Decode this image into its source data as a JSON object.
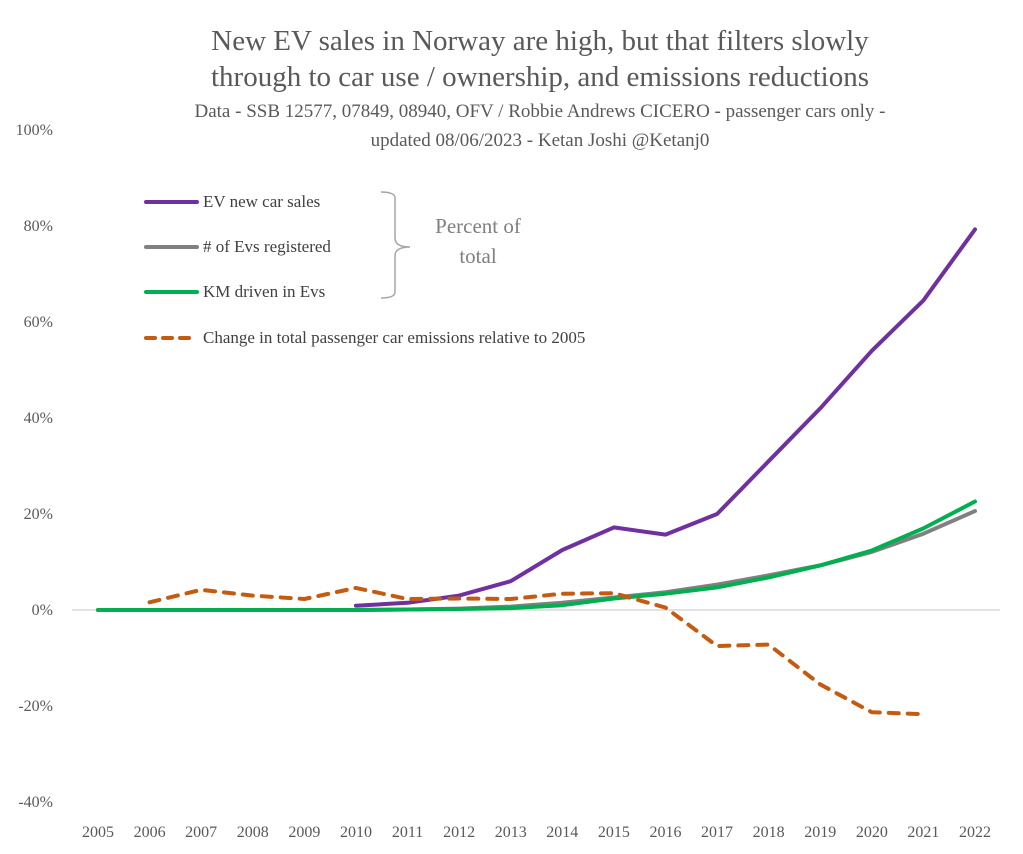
{
  "chart_data": {
    "type": "line",
    "title": "New EV sales in Norway are high, but that filters slowly through to car use / ownership, and emissions reductions",
    "title_lines": [
      "New EV sales in Norway are high, but that filters slowly",
      "through to car use / ownership, and emissions reductions"
    ],
    "subtitle_lines": [
      "Data - SSB 12577, 07849, 08940, OFV / Robbie Andrews CICERO - passenger cars only -",
      "updated 08/06/2023 - Ketan Joshi @Ketanj0"
    ],
    "xlabel": "",
    "ylabel": "",
    "ylim": [
      -40,
      100
    ],
    "y_ticks": [
      100,
      80,
      60,
      40,
      20,
      0,
      -20,
      -40
    ],
    "y_tick_labels": [
      "100%",
      "80%",
      "60%",
      "40%",
      "20%",
      "0%",
      "-20%",
      "-40%"
    ],
    "x": [
      2005,
      2006,
      2007,
      2008,
      2009,
      2010,
      2011,
      2012,
      2013,
      2014,
      2015,
      2016,
      2017,
      2018,
      2019,
      2020,
      2021,
      2022
    ],
    "x_tick_labels": [
      "2005",
      "2006",
      "2007",
      "2008",
      "2009",
      "2010",
      "2011",
      "2012",
      "2013",
      "2014",
      "2015",
      "2016",
      "2017",
      "2018",
      "2019",
      "2020",
      "2021",
      "2022"
    ],
    "grid": false,
    "zero_line": true,
    "legend_position": "top-left",
    "series": [
      {
        "name": "EV new car sales",
        "color": "#7030a0",
        "dashed": false,
        "values": [
          null,
          null,
          null,
          null,
          null,
          0.9,
          1.5,
          3.0,
          6.0,
          12.5,
          17.2,
          15.7,
          20.0,
          31.0,
          42.0,
          54.0,
          64.5,
          79.3
        ]
      },
      {
        "name": "# of Evs registered",
        "color": "#808080",
        "dashed": false,
        "values": [
          0,
          0,
          0,
          0,
          0,
          0,
          0.1,
          0.3,
          0.7,
          1.5,
          2.6,
          3.7,
          5.3,
          7.2,
          9.3,
          12.1,
          15.9,
          20.6
        ]
      },
      {
        "name": "KM driven in Evs",
        "color": "#00b050",
        "dashed": false,
        "values": [
          0,
          0,
          0,
          0,
          0,
          0,
          0.1,
          0.2,
          0.4,
          1.0,
          2.4,
          3.4,
          4.7,
          6.8,
          9.3,
          12.4,
          17.0,
          22.6
        ]
      },
      {
        "name": "Change in total passenger car emissions relative to 2005",
        "color": "#c55a11",
        "dashed": true,
        "values": [
          null,
          1.6,
          4.2,
          3.0,
          2.3,
          4.6,
          2.3,
          2.4,
          2.3,
          3.4,
          3.5,
          0.5,
          -7.5,
          -7.2,
          -15.5,
          -21.3,
          -21.7,
          null
        ]
      }
    ],
    "annotation": {
      "bracket_groups": [
        "EV new car sales",
        "# of Evs registered",
        "KM driven in Evs"
      ],
      "text_lines": [
        "Percent of",
        "total"
      ]
    }
  }
}
